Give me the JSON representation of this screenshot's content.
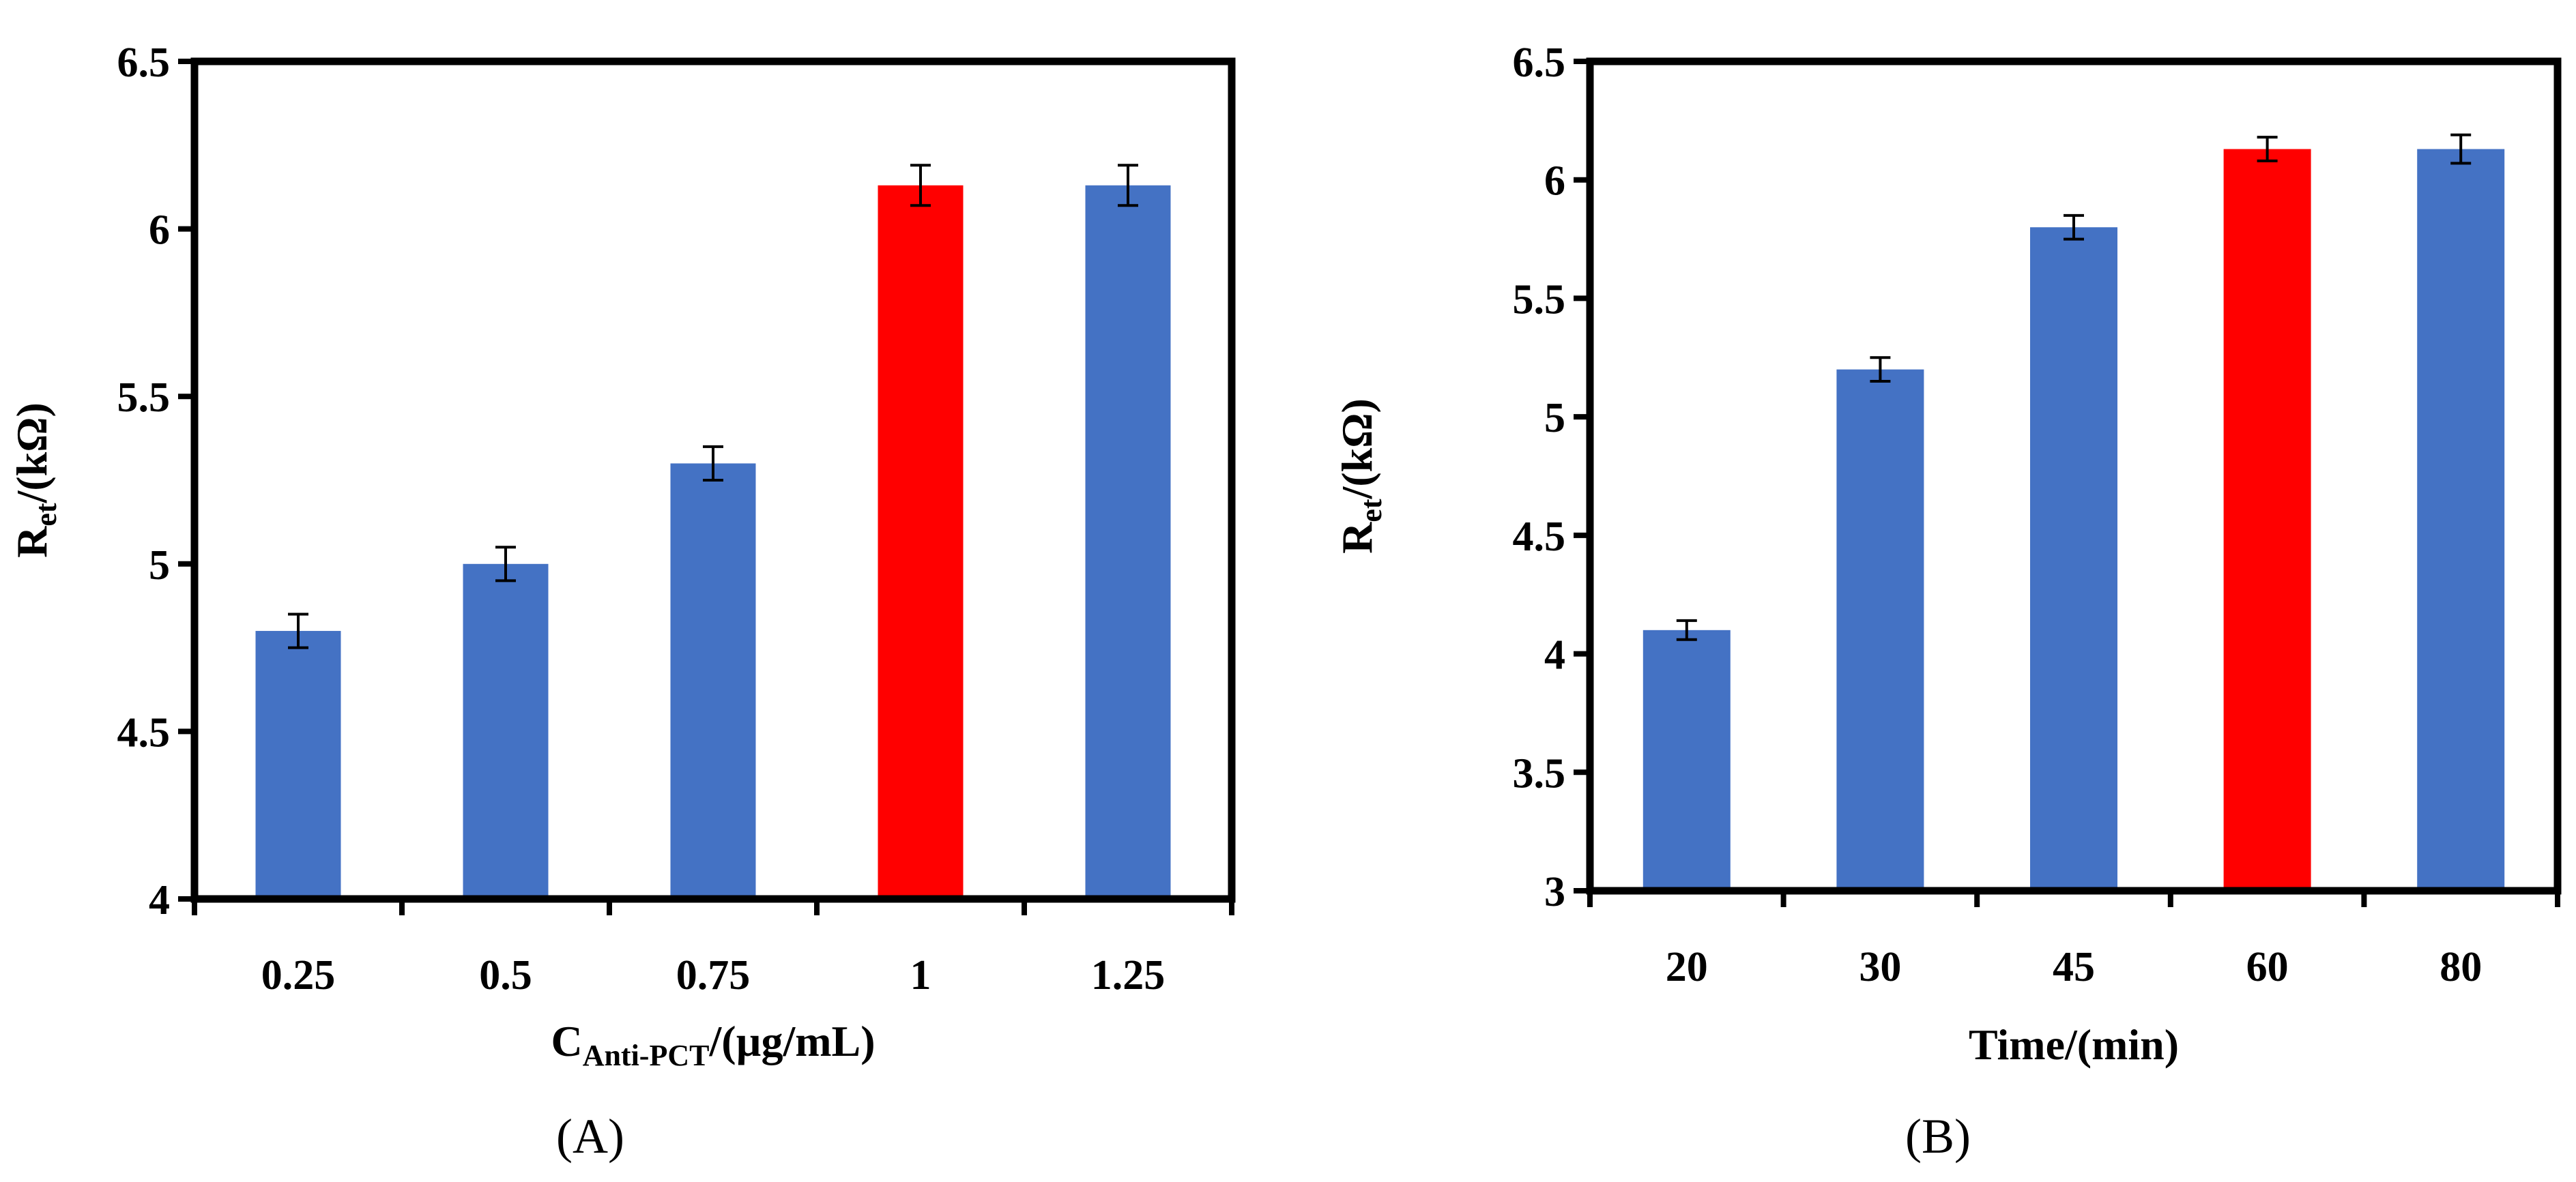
{
  "chart_data": [
    {
      "type": "bar",
      "panel_label": "(A)",
      "categories": [
        "0.25",
        "0.5",
        "0.75",
        "1",
        "1.25"
      ],
      "values": [
        4.8,
        5.0,
        5.3,
        6.13,
        6.13
      ],
      "errors": [
        0.05,
        0.05,
        0.05,
        0.06,
        0.06
      ],
      "highlight_index": 3,
      "ylim": [
        4,
        6.5
      ],
      "yticks": [
        "4",
        "4.5",
        "5",
        "5.5",
        "6",
        "6.5"
      ],
      "ylabel": {
        "main": "R",
        "sub": "et",
        "rest": "/(kΩ)"
      },
      "xlabel": {
        "main": "C",
        "sub": "Anti-PCT",
        "rest": "/(µg/mL)"
      },
      "colors": {
        "bar": "#4472C4",
        "highlight": "#FF0000"
      }
    },
    {
      "type": "bar",
      "panel_label": "(B)",
      "categories": [
        "20",
        "30",
        "45",
        "60",
        "80"
      ],
      "values": [
        4.1,
        5.2,
        5.8,
        6.13,
        6.13
      ],
      "errors": [
        0.04,
        0.05,
        0.05,
        0.05,
        0.06
      ],
      "highlight_index": 3,
      "ylim": [
        3,
        6.5
      ],
      "yticks": [
        "3",
        "3.5",
        "4",
        "4.5",
        "5",
        "5.5",
        "6",
        "6.5"
      ],
      "ylabel": {
        "main": "R",
        "sub": "et",
        "rest": "/(kΩ)"
      },
      "xlabel": {
        "main": "Time/(min)",
        "sub": "",
        "rest": ""
      },
      "colors": {
        "bar": "#4472C4",
        "highlight": "#FF0000"
      }
    }
  ]
}
